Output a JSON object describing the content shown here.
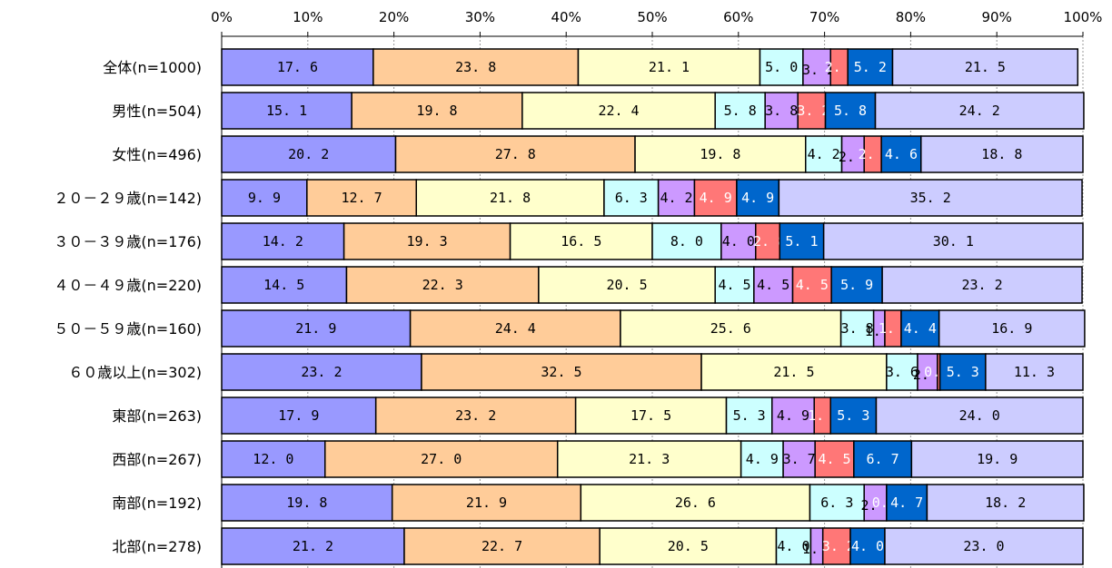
{
  "chart_data": {
    "type": "bar",
    "orientation": "horizontal",
    "stacked": "percent",
    "xlim": [
      0,
      100
    ],
    "ticks": [
      "0%",
      "10%",
      "20%",
      "30%",
      "40%",
      "50%",
      "60%",
      "70%",
      "80%",
      "90%",
      "100%"
    ],
    "grid": true,
    "categories": [
      "全体(n=1000)",
      "男性(n=504)",
      "女性(n=496)",
      "２０－２９歳(n=142)",
      "３０－３９歳(n=176)",
      "４０－４９歳(n=220)",
      "５０－５９歳(n=160)",
      "６０歳以上(n=302)",
      "東部(n=263)",
      "西部(n=267)",
      "南部(n=192)",
      "北部(n=278)"
    ],
    "series": [
      {
        "color": "#9999ff",
        "label_color": "#000000",
        "values": [
          17.6,
          15.1,
          20.2,
          9.9,
          14.2,
          14.5,
          21.9,
          23.2,
          17.9,
          12.0,
          19.8,
          21.2
        ]
      },
      {
        "color": "#ffcc99",
        "label_color": "#000000",
        "values": [
          23.8,
          19.8,
          27.8,
          12.7,
          19.3,
          22.3,
          24.4,
          32.5,
          23.2,
          27.0,
          21.9,
          22.7
        ]
      },
      {
        "color": "#ffffcc",
        "label_color": "#000000",
        "values": [
          21.1,
          22.4,
          19.8,
          21.8,
          16.5,
          20.5,
          25.6,
          21.5,
          17.5,
          21.3,
          26.6,
          20.5
        ]
      },
      {
        "color": "#ccffff",
        "label_color": "#000000",
        "values": [
          5.0,
          5.8,
          4.2,
          6.3,
          8.0,
          4.5,
          3.8,
          3.6,
          5.3,
          4.9,
          6.3,
          4.0
        ]
      },
      {
        "color": "#cc99ff",
        "label_color": "#000000",
        "values": [
          3.2,
          3.8,
          2.6,
          4.2,
          4.0,
          4.5,
          1.3,
          2.3,
          4.9,
          3.7,
          2.6,
          1.4
        ]
      },
      {
        "color": "#ff7777",
        "label_color": "#ffffff",
        "values": [
          2.0,
          3.2,
          2.0,
          4.9,
          2.8,
          4.5,
          1.9,
          0.3,
          1.9,
          4.5,
          0.0,
          3.2
        ]
      },
      {
        "color": "#0066cc",
        "label_color": "#ffffff",
        "values": [
          5.2,
          5.8,
          4.6,
          4.9,
          5.1,
          5.9,
          4.4,
          5.3,
          5.3,
          6.7,
          4.7,
          4.0
        ]
      },
      {
        "color": "#ccccff",
        "label_color": "#000000",
        "values": [
          21.5,
          24.2,
          18.8,
          35.2,
          30.1,
          23.2,
          16.9,
          11.3,
          24.0,
          19.9,
          18.2,
          23.0
        ]
      }
    ]
  }
}
